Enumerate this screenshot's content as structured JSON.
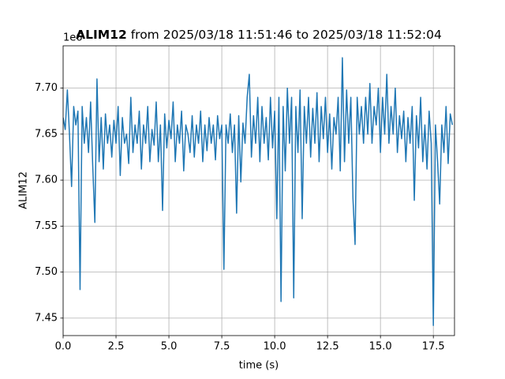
{
  "chart_data": {
    "type": "line",
    "title_name": "ALIM12",
    "title_rest": "from 2025/03/18 11:51:46 to 2025/03/18 11:52:04",
    "x_label": "time (s)",
    "y_label": "ALIM12",
    "y_offset_label": "1e6",
    "grid": true,
    "xlim": [
      0,
      18.5
    ],
    "ylim": [
      7.431,
      7.746
    ],
    "xticks": [
      {
        "value": 0,
        "label": "0.0"
      },
      2.5,
      {
        "value": 5,
        "label": "5.0"
      },
      7.5,
      {
        "value": 10,
        "label": "10.0"
      },
      12.5,
      {
        "value": 15,
        "label": "15.0"
      },
      17.5
    ],
    "yticks": [
      7.45,
      {
        "value": 7.5,
        "label": "7.50"
      },
      7.55,
      {
        "value": 7.6,
        "label": "7.60"
      },
      7.65,
      {
        "value": 7.7,
        "label": "7.70"
      }
    ],
    "x": [
      0,
      0.1,
      0.2,
      0.3,
      0.4,
      0.5,
      0.6,
      0.7,
      0.8,
      0.9,
      1,
      1.1,
      1.2,
      1.3,
      1.4,
      1.5,
      1.6,
      1.7,
      1.8,
      1.9,
      2,
      2.1,
      2.2,
      2.3,
      2.4,
      2.5,
      2.6,
      2.7,
      2.8,
      2.9,
      3,
      3.1,
      3.2,
      3.3,
      3.4,
      3.5,
      3.6,
      3.7,
      3.8,
      3.9,
      4,
      4.1,
      4.2,
      4.3,
      4.4,
      4.5,
      4.6,
      4.7,
      4.8,
      4.9,
      5,
      5.1,
      5.2,
      5.3,
      5.4,
      5.5,
      5.6,
      5.7,
      5.8,
      5.9,
      6,
      6.1,
      6.2,
      6.3,
      6.4,
      6.5,
      6.6,
      6.7,
      6.8,
      6.9,
      7,
      7.1,
      7.2,
      7.3,
      7.4,
      7.5,
      7.6,
      7.7,
      7.8,
      7.9,
      8,
      8.1,
      8.2,
      8.3,
      8.4,
      8.5,
      8.6,
      8.7,
      8.8,
      8.9,
      9,
      9.1,
      9.2,
      9.3,
      9.4,
      9.5,
      9.6,
      9.7,
      9.8,
      9.9,
      10,
      10.1,
      10.2,
      10.3,
      10.4,
      10.5,
      10.6,
      10.7,
      10.8,
      10.9,
      11,
      11.1,
      11.2,
      11.3,
      11.4,
      11.5,
      11.6,
      11.7,
      11.8,
      11.9,
      12,
      12.1,
      12.2,
      12.3,
      12.4,
      12.5,
      12.6,
      12.7,
      12.8,
      12.9,
      13,
      13.1,
      13.2,
      13.3,
      13.4,
      13.5,
      13.6,
      13.7,
      13.8,
      13.9,
      14,
      14.1,
      14.2,
      14.3,
      14.4,
      14.5,
      14.6,
      14.7,
      14.8,
      14.9,
      15,
      15.1,
      15.2,
      15.3,
      15.4,
      15.5,
      15.6,
      15.7,
      15.8,
      15.9,
      16,
      16.1,
      16.2,
      16.3,
      16.4,
      16.5,
      16.6,
      16.7,
      16.8,
      16.9,
      17,
      17.1,
      17.2,
      17.3,
      17.4,
      17.5,
      17.6,
      17.7,
      17.8,
      17.9,
      18,
      18.1,
      18.2,
      18.3,
      18.4
    ],
    "series": [
      {
        "color": "#1f77b4",
        "values": [
          7.668,
          7.655,
          7.698,
          7.65,
          7.593,
          7.68,
          7.66,
          7.675,
          7.481,
          7.68,
          7.64,
          7.668,
          7.63,
          7.685,
          7.615,
          7.554,
          7.71,
          7.62,
          7.668,
          7.612,
          7.672,
          7.64,
          7.66,
          7.625,
          7.665,
          7.64,
          7.68,
          7.605,
          7.668,
          7.64,
          7.65,
          7.618,
          7.69,
          7.63,
          7.66,
          7.64,
          7.675,
          7.612,
          7.66,
          7.64,
          7.68,
          7.62,
          7.655,
          7.638,
          7.685,
          7.62,
          7.66,
          7.567,
          7.672,
          7.635,
          7.665,
          7.645,
          7.685,
          7.62,
          7.66,
          7.64,
          7.675,
          7.61,
          7.66,
          7.65,
          7.63,
          7.67,
          7.625,
          7.66,
          7.64,
          7.675,
          7.62,
          7.66,
          7.632,
          7.668,
          7.64,
          7.66,
          7.622,
          7.67,
          7.645,
          7.66,
          7.503,
          7.66,
          7.64,
          7.672,
          7.63,
          7.66,
          7.564,
          7.67,
          7.598,
          7.662,
          7.64,
          7.69,
          7.715,
          7.625,
          7.67,
          7.64,
          7.69,
          7.62,
          7.68,
          7.64,
          7.668,
          7.622,
          7.69,
          7.635,
          7.675,
          7.558,
          7.69,
          7.468,
          7.68,
          7.61,
          7.7,
          7.64,
          7.69,
          7.472,
          7.68,
          7.63,
          7.698,
          7.558,
          7.68,
          7.64,
          7.69,
          7.625,
          7.678,
          7.64,
          7.695,
          7.62,
          7.68,
          7.645,
          7.69,
          7.63,
          7.672,
          7.612,
          7.668,
          7.65,
          7.69,
          7.61,
          7.733,
          7.62,
          7.698,
          7.64,
          7.69,
          7.58,
          7.53,
          7.69,
          7.65,
          7.68,
          7.64,
          7.69,
          7.65,
          7.705,
          7.64,
          7.68,
          7.66,
          7.7,
          7.63,
          7.69,
          7.65,
          7.715,
          7.64,
          7.68,
          7.65,
          7.7,
          7.63,
          7.67,
          7.645,
          7.675,
          7.62,
          7.668,
          7.64,
          7.68,
          7.578,
          7.67,
          7.635,
          7.69,
          7.62,
          7.66,
          7.612,
          7.675,
          7.64,
          7.442,
          7.66,
          7.62,
          7.574,
          7.66,
          7.63,
          7.68,
          7.618,
          7.672,
          7.66
        ]
      }
    ]
  }
}
